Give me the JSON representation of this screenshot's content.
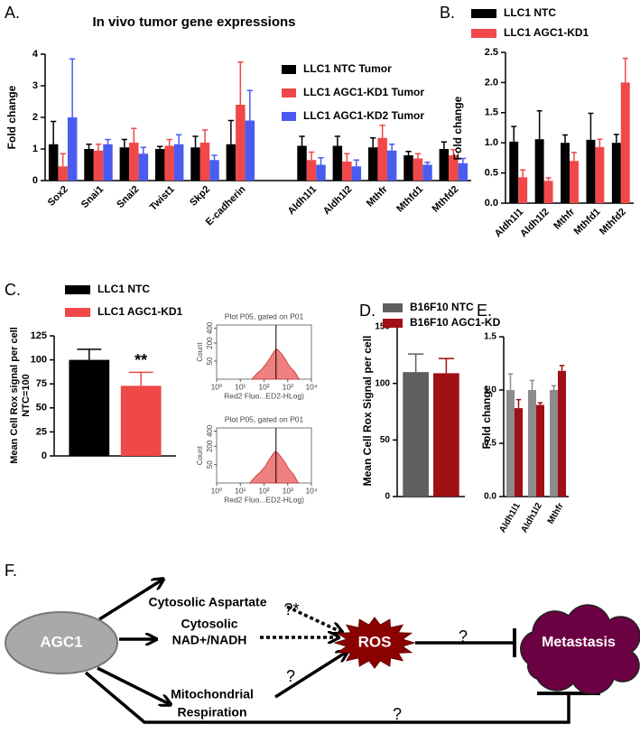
{
  "chart_data": [
    {
      "type": "bar",
      "panel": "A.",
      "title": "In vivo tumor gene expressions",
      "ylabel": "Fold change",
      "categories": [
        "Sox2",
        "Snai1",
        "Snai2",
        "Twist1",
        "Skp2",
        "E-cadherin",
        null,
        "Aldh1l1",
        "Aldh1l2",
        "Mthfr",
        "Mthfd1",
        "Mthfd2"
      ],
      "series": [
        {
          "name": "LLC1 NTC Tumor",
          "color": "#000000",
          "values": [
            1.15,
            1.0,
            1.05,
            1.0,
            1.05,
            1.15,
            null,
            1.1,
            1.1,
            1.05,
            0.8,
            1.0
          ],
          "errors": [
            0.72,
            0.15,
            0.25,
            0.08,
            0.35,
            0.75,
            null,
            0.3,
            0.3,
            0.3,
            0.12,
            0.22
          ]
        },
        {
          "name": "LLC1 AGC1-KD1 Tumor",
          "color": "#f04848",
          "values": [
            0.45,
            0.95,
            1.2,
            1.1,
            1.2,
            2.4,
            null,
            0.65,
            0.6,
            1.35,
            0.7,
            0.8
          ],
          "errors": [
            0.4,
            0.2,
            0.45,
            0.2,
            0.4,
            1.35,
            null,
            0.25,
            0.25,
            0.4,
            0.15,
            0.18
          ]
        },
        {
          "name": "LLC1 AGC1-KD2 Tumor",
          "color": "#4a5cf0",
          "values": [
            2.0,
            1.15,
            0.85,
            1.15,
            0.65,
            1.9,
            null,
            0.5,
            0.45,
            0.95,
            0.5,
            0.55
          ],
          "errors": [
            1.85,
            0.15,
            0.2,
            0.3,
            0.15,
            0.95,
            null,
            0.22,
            0.2,
            0.2,
            0.08,
            0.15
          ]
        }
      ],
      "ylim": [
        0,
        4
      ],
      "yticks": [
        0,
        1,
        2,
        3,
        4
      ]
    },
    {
      "type": "bar",
      "panel": "B.",
      "ylabel": "Fold change",
      "categories": [
        "Aldh1l1",
        "Aldh1l2",
        "Mthfr",
        "Mthfd1",
        "Mthfd2"
      ],
      "series": [
        {
          "name": "LLC1 NTC",
          "color": "#000000",
          "values": [
            1.02,
            1.06,
            1.0,
            1.05,
            1.0
          ],
          "errors": [
            0.25,
            0.47,
            0.13,
            0.44,
            0.14
          ]
        },
        {
          "name": "LLC1 AGC1-KD1",
          "color": "#f04848",
          "values": [
            0.43,
            0.37,
            0.7,
            0.93,
            2.0
          ],
          "errors": [
            0.12,
            0.05,
            0.14,
            0.13,
            0.4
          ]
        }
      ],
      "ylim": [
        0,
        2.5
      ],
      "yticks": [
        {
          "value": 0,
          "label": "0.0"
        },
        {
          "value": 0.5,
          "label": "0.5"
        },
        {
          "value": 1,
          "label": "1.0"
        },
        {
          "value": 1.5,
          "label": "1.5"
        },
        {
          "value": 2,
          "label": "2.0"
        },
        {
          "value": 2.5,
          "label": "2.5"
        }
      ]
    },
    {
      "type": "bar",
      "panel": "C.",
      "ylabel": [
        "Mean Cell Rox signal per cell",
        "NTC=100"
      ],
      "annotation": "**",
      "series": [
        {
          "name": "LLC1 NTC",
          "color": "#000000",
          "values": [
            100
          ],
          "errors": [
            11
          ]
        },
        {
          "name": "LLC1 AGC1-KD1",
          "color": "#f04848",
          "values": [
            73
          ],
          "errors": [
            14
          ]
        }
      ],
      "ylim": [
        0,
        125
      ],
      "yticks": [
        0,
        25,
        50,
        75,
        100,
        125
      ]
    },
    {
      "type": "area",
      "title": "Plot P05, gated on P01",
      "ylabel": "Count",
      "xlabel": "Red2 Fluo...ED2-HLog)",
      "color": "#f08080",
      "x": [
        30,
        50,
        80,
        120,
        180,
        250,
        320,
        400,
        550,
        800,
        1200,
        2000,
        3000
      ],
      "values": [
        0,
        5,
        15,
        35,
        70,
        110,
        140,
        130,
        100,
        60,
        25,
        8,
        0
      ],
      "gate_x": 320,
      "xscale": "log",
      "xlim": [
        1,
        10000
      ],
      "xticks": [
        {
          "value": 1,
          "label": "10⁰"
        },
        {
          "value": 10,
          "label": "10¹"
        },
        {
          "value": 100,
          "label": "10²"
        },
        {
          "value": 1000,
          "label": "10³"
        },
        {
          "value": 10000,
          "label": "10⁴"
        }
      ],
      "yscale": "sqrt",
      "ylim": [
        0,
        450
      ],
      "yticks": [
        50,
        200,
        400
      ]
    },
    {
      "type": "area",
      "title": "Plot P05, gated on P01",
      "ylabel": "Count",
      "xlabel": "Red2 Fluo...ED2-HLog)",
      "color": "#f08080",
      "x": [
        25,
        40,
        70,
        110,
        160,
        230,
        300,
        380,
        500,
        750,
        1100,
        1800,
        2800
      ],
      "values": [
        0,
        5,
        18,
        40,
        80,
        120,
        150,
        135,
        105,
        65,
        30,
        10,
        0
      ],
      "gate_x": 320,
      "xscale": "log",
      "xlim": [
        1,
        10000
      ],
      "xticks": [
        {
          "value": 1,
          "label": "10⁰"
        },
        {
          "value": 10,
          "label": "10¹"
        },
        {
          "value": 100,
          "label": "10²"
        },
        {
          "value": 1000,
          "label": "10³"
        },
        {
          "value": 10000,
          "label": "10⁴"
        }
      ],
      "yscale": "sqrt",
      "ylim": [
        0,
        450
      ],
      "yticks": [
        50,
        200,
        400
      ]
    },
    {
      "type": "bar",
      "panel": "D.",
      "ylabel": "Mean Cell Rox Signal per cell",
      "series": [
        {
          "name": "B16F10 NTC",
          "color": "#5f5f5f",
          "values": [
            110
          ],
          "errors": [
            16
          ]
        },
        {
          "name": "B16F10 AGC1-KD",
          "color": "#a00f14",
          "values": [
            109
          ],
          "errors": [
            13
          ]
        }
      ],
      "ylim": [
        0,
        150
      ],
      "yticks": [
        0,
        50,
        100,
        150
      ]
    },
    {
      "type": "bar",
      "panel": "E.",
      "ylabel": "Fold change",
      "categories": [
        "Aldh1l1",
        "Aldh1l2",
        "Mthfr"
      ],
      "series": [
        {
          "color": "#8c8c8c",
          "values": [
            1.0,
            1.0,
            1.0
          ],
          "errors": [
            0.15,
            0.09,
            0.04
          ]
        },
        {
          "color": "#a00f14",
          "values": [
            0.83,
            0.86,
            1.18
          ],
          "errors": [
            0.08,
            0.02,
            0.05
          ]
        }
      ],
      "ylim": [
        0,
        1.5
      ],
      "yticks": [
        {
          "value": 0,
          "label": "0.0"
        },
        {
          "value": 0.5,
          "label": "0.5"
        },
        {
          "value": 1,
          "label": "1.0"
        },
        {
          "value": 1.5,
          "label": "1.5"
        }
      ]
    }
  ],
  "diagram": {
    "panel": "F.",
    "nodes": [
      {
        "lines": [
          "AGC1"
        ]
      },
      {
        "lines": [
          "Cytosolic Aspartate"
        ]
      },
      {
        "lines": [
          "Cytosolic",
          "NAD+/NADH"
        ]
      },
      {
        "lines": [
          "Mitochondrial",
          "Respiration"
        ]
      },
      {
        "lines": [
          "ROS"
        ]
      },
      {
        "lines": [
          "Metastasis"
        ]
      }
    ],
    "edge_labels": [
      "?*",
      "?",
      "?",
      "?"
    ]
  }
}
